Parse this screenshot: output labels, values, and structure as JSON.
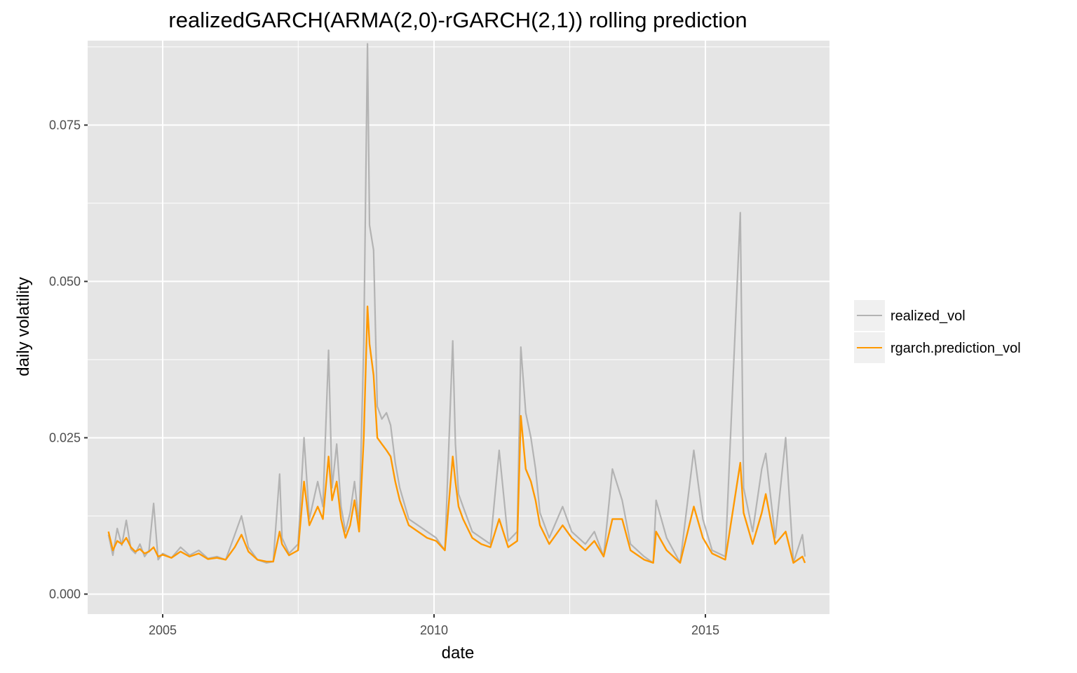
{
  "chart_data": {
    "type": "line",
    "title": "realizedGARCH(ARMA(2,0)-rGARCH(2,1)) rolling prediction",
    "xlabel": "date",
    "ylabel": "daily volatility",
    "x_ticks": [
      "2005",
      "2010",
      "2015"
    ],
    "y_ticks": [
      "0.000",
      "0.025",
      "0.050",
      "0.075"
    ],
    "xlim": [
      "2003-08-15",
      "2017-04-15"
    ],
    "ylim": [
      -0.0032,
      0.0885
    ],
    "grid": true,
    "legend_position": "right",
    "colors": {
      "panel": "#e5e5e5",
      "grid": "#ffffff",
      "realized": "#b3b3b3",
      "prediction": "#ff9900"
    },
    "series": [
      {
        "name": "realized_vol",
        "color": "#b3b3b3",
        "points": [
          [
            "2004-01-02",
            0.0095
          ],
          [
            "2004-02-01",
            0.0062
          ],
          [
            "2004-03-01",
            0.0105
          ],
          [
            "2004-04-01",
            0.0078
          ],
          [
            "2004-05-01",
            0.0118
          ],
          [
            "2004-06-01",
            0.0072
          ],
          [
            "2004-07-01",
            0.0065
          ],
          [
            "2004-08-01",
            0.008
          ],
          [
            "2004-09-01",
            0.006
          ],
          [
            "2004-10-01",
            0.007
          ],
          [
            "2004-11-01",
            0.0145
          ],
          [
            "2004-12-01",
            0.0055
          ],
          [
            "2005-01-01",
            0.0065
          ],
          [
            "2005-03-01",
            0.0058
          ],
          [
            "2005-05-01",
            0.0075
          ],
          [
            "2005-07-01",
            0.0062
          ],
          [
            "2005-09-01",
            0.007
          ],
          [
            "2005-11-01",
            0.0057
          ],
          [
            "2006-01-01",
            0.006
          ],
          [
            "2006-03-01",
            0.0055
          ],
          [
            "2006-05-01",
            0.0095
          ],
          [
            "2006-06-15",
            0.0125
          ],
          [
            "2006-08-01",
            0.0075
          ],
          [
            "2006-10-01",
            0.0055
          ],
          [
            "2006-12-01",
            0.005
          ],
          [
            "2007-01-15",
            0.0052
          ],
          [
            "2007-02-27",
            0.0192
          ],
          [
            "2007-03-15",
            0.009
          ],
          [
            "2007-05-01",
            0.0065
          ],
          [
            "2007-07-01",
            0.008
          ],
          [
            "2007-08-10",
            0.025
          ],
          [
            "2007-09-15",
            0.012
          ],
          [
            "2007-11-10",
            0.018
          ],
          [
            "2007-12-15",
            0.014
          ],
          [
            "2008-01-22",
            0.039
          ],
          [
            "2008-02-15",
            0.017
          ],
          [
            "2008-03-17",
            0.024
          ],
          [
            "2008-04-15",
            0.014
          ],
          [
            "2008-05-15",
            0.01
          ],
          [
            "2008-06-15",
            0.013
          ],
          [
            "2008-07-15",
            0.018
          ],
          [
            "2008-08-15",
            0.011
          ],
          [
            "2008-09-15",
            0.04
          ],
          [
            "2008-10-10",
            0.088
          ],
          [
            "2008-10-24",
            0.059
          ],
          [
            "2008-11-20",
            0.055
          ],
          [
            "2008-12-15",
            0.03
          ],
          [
            "2009-01-15",
            0.028
          ],
          [
            "2009-02-15",
            0.029
          ],
          [
            "2009-03-15",
            0.027
          ],
          [
            "2009-04-15",
            0.021
          ],
          [
            "2009-05-15",
            0.017
          ],
          [
            "2009-07-15",
            0.012
          ],
          [
            "2009-09-15",
            0.011
          ],
          [
            "2009-11-15",
            0.01
          ],
          [
            "2010-01-15",
            0.009
          ],
          [
            "2010-03-15",
            0.007
          ],
          [
            "2010-05-07",
            0.0405
          ],
          [
            "2010-05-25",
            0.024
          ],
          [
            "2010-06-15",
            0.016
          ],
          [
            "2010-07-15",
            0.014
          ],
          [
            "2010-09-15",
            0.01
          ],
          [
            "2010-11-15",
            0.009
          ],
          [
            "2011-01-15",
            0.008
          ],
          [
            "2011-03-15",
            0.023
          ],
          [
            "2011-05-15",
            0.0085
          ],
          [
            "2011-07-15",
            0.01
          ],
          [
            "2011-08-08",
            0.0395
          ],
          [
            "2011-09-10",
            0.029
          ],
          [
            "2011-10-15",
            0.025
          ],
          [
            "2011-11-15",
            0.02
          ],
          [
            "2011-12-15",
            0.013
          ],
          [
            "2012-02-15",
            0.009
          ],
          [
            "2012-05-15",
            0.014
          ],
          [
            "2012-07-15",
            0.01
          ],
          [
            "2012-10-15",
            0.008
          ],
          [
            "2012-12-15",
            0.01
          ],
          [
            "2013-02-15",
            0.006
          ],
          [
            "2013-04-15",
            0.02
          ],
          [
            "2013-06-20",
            0.015
          ],
          [
            "2013-08-15",
            0.008
          ],
          [
            "2013-11-15",
            0.006
          ],
          [
            "2014-01-15",
            0.005
          ],
          [
            "2014-02-03",
            0.015
          ],
          [
            "2014-04-15",
            0.009
          ],
          [
            "2014-07-15",
            0.005
          ],
          [
            "2014-10-15",
            0.023
          ],
          [
            "2014-12-15",
            0.012
          ],
          [
            "2015-02-15",
            0.007
          ],
          [
            "2015-05-15",
            0.006
          ],
          [
            "2015-08-24",
            0.061
          ],
          [
            "2015-09-15",
            0.017
          ],
          [
            "2015-11-15",
            0.01
          ],
          [
            "2016-01-15",
            0.02
          ],
          [
            "2016-02-11",
            0.0225
          ],
          [
            "2016-04-15",
            0.009
          ],
          [
            "2016-06-24",
            0.025
          ],
          [
            "2016-08-15",
            0.005
          ],
          [
            "2016-10-15",
            0.0095
          ],
          [
            "2016-11-01",
            0.006
          ]
        ]
      },
      {
        "name": "rgarch.prediction_vol",
        "color": "#ff9900",
        "points": [
          [
            "2004-01-02",
            0.01
          ],
          [
            "2004-02-01",
            0.007
          ],
          [
            "2004-03-01",
            0.0085
          ],
          [
            "2004-04-01",
            0.008
          ],
          [
            "2004-05-01",
            0.009
          ],
          [
            "2004-06-01",
            0.0075
          ],
          [
            "2004-07-01",
            0.0068
          ],
          [
            "2004-08-01",
            0.0072
          ],
          [
            "2004-09-01",
            0.0065
          ],
          [
            "2004-10-01",
            0.0068
          ],
          [
            "2004-11-01",
            0.0075
          ],
          [
            "2004-12-01",
            0.006
          ],
          [
            "2005-01-01",
            0.0063
          ],
          [
            "2005-03-01",
            0.0058
          ],
          [
            "2005-05-01",
            0.0068
          ],
          [
            "2005-07-01",
            0.006
          ],
          [
            "2005-09-01",
            0.0065
          ],
          [
            "2005-11-01",
            0.0056
          ],
          [
            "2006-01-01",
            0.0058
          ],
          [
            "2006-03-01",
            0.0055
          ],
          [
            "2006-05-01",
            0.0075
          ],
          [
            "2006-06-15",
            0.0095
          ],
          [
            "2006-08-01",
            0.0068
          ],
          [
            "2006-10-01",
            0.0055
          ],
          [
            "2006-12-01",
            0.0052
          ],
          [
            "2007-01-15",
            0.0052
          ],
          [
            "2007-02-27",
            0.01
          ],
          [
            "2007-03-15",
            0.008
          ],
          [
            "2007-05-01",
            0.0062
          ],
          [
            "2007-07-01",
            0.007
          ],
          [
            "2007-08-10",
            0.018
          ],
          [
            "2007-09-15",
            0.011
          ],
          [
            "2007-11-10",
            0.014
          ],
          [
            "2007-12-15",
            0.012
          ],
          [
            "2008-01-22",
            0.022
          ],
          [
            "2008-02-15",
            0.015
          ],
          [
            "2008-03-17",
            0.018
          ],
          [
            "2008-04-15",
            0.012
          ],
          [
            "2008-05-15",
            0.009
          ],
          [
            "2008-06-15",
            0.011
          ],
          [
            "2008-07-15",
            0.015
          ],
          [
            "2008-08-15",
            0.01
          ],
          [
            "2008-09-15",
            0.025
          ],
          [
            "2008-10-10",
            0.046
          ],
          [
            "2008-10-24",
            0.04
          ],
          [
            "2008-11-20",
            0.035
          ],
          [
            "2008-12-15",
            0.025
          ],
          [
            "2009-01-15",
            0.024
          ],
          [
            "2009-02-15",
            0.023
          ],
          [
            "2009-03-15",
            0.022
          ],
          [
            "2009-04-15",
            0.018
          ],
          [
            "2009-05-15",
            0.015
          ],
          [
            "2009-07-15",
            0.011
          ],
          [
            "2009-09-15",
            0.01
          ],
          [
            "2009-11-15",
            0.009
          ],
          [
            "2010-01-15",
            0.0085
          ],
          [
            "2010-03-15",
            0.007
          ],
          [
            "2010-05-07",
            0.022
          ],
          [
            "2010-05-25",
            0.018
          ],
          [
            "2010-06-15",
            0.014
          ],
          [
            "2010-07-15",
            0.012
          ],
          [
            "2010-09-15",
            0.009
          ],
          [
            "2010-11-15",
            0.008
          ],
          [
            "2011-01-15",
            0.0075
          ],
          [
            "2011-03-15",
            0.012
          ],
          [
            "2011-05-15",
            0.0075
          ],
          [
            "2011-07-15",
            0.0085
          ],
          [
            "2011-08-08",
            0.0285
          ],
          [
            "2011-09-10",
            0.02
          ],
          [
            "2011-10-15",
            0.018
          ],
          [
            "2011-11-15",
            0.015
          ],
          [
            "2011-12-15",
            0.011
          ],
          [
            "2012-02-15",
            0.008
          ],
          [
            "2012-05-15",
            0.011
          ],
          [
            "2012-07-15",
            0.009
          ],
          [
            "2012-10-15",
            0.007
          ],
          [
            "2012-12-15",
            0.0085
          ],
          [
            "2013-02-15",
            0.006
          ],
          [
            "2013-04-15",
            0.012
          ],
          [
            "2013-06-20",
            0.012
          ],
          [
            "2013-08-15",
            0.007
          ],
          [
            "2013-11-15",
            0.0055
          ],
          [
            "2014-01-15",
            0.005
          ],
          [
            "2014-02-03",
            0.01
          ],
          [
            "2014-04-15",
            0.007
          ],
          [
            "2014-07-15",
            0.005
          ],
          [
            "2014-10-15",
            0.014
          ],
          [
            "2014-12-15",
            0.009
          ],
          [
            "2015-02-15",
            0.0065
          ],
          [
            "2015-05-15",
            0.0055
          ],
          [
            "2015-08-24",
            0.021
          ],
          [
            "2015-09-15",
            0.013
          ],
          [
            "2015-11-15",
            0.008
          ],
          [
            "2016-01-15",
            0.013
          ],
          [
            "2016-02-11",
            0.016
          ],
          [
            "2016-04-15",
            0.008
          ],
          [
            "2016-06-24",
            0.01
          ],
          [
            "2016-08-15",
            0.005
          ],
          [
            "2016-10-15",
            0.006
          ],
          [
            "2016-11-01",
            0.005
          ]
        ]
      }
    ]
  }
}
